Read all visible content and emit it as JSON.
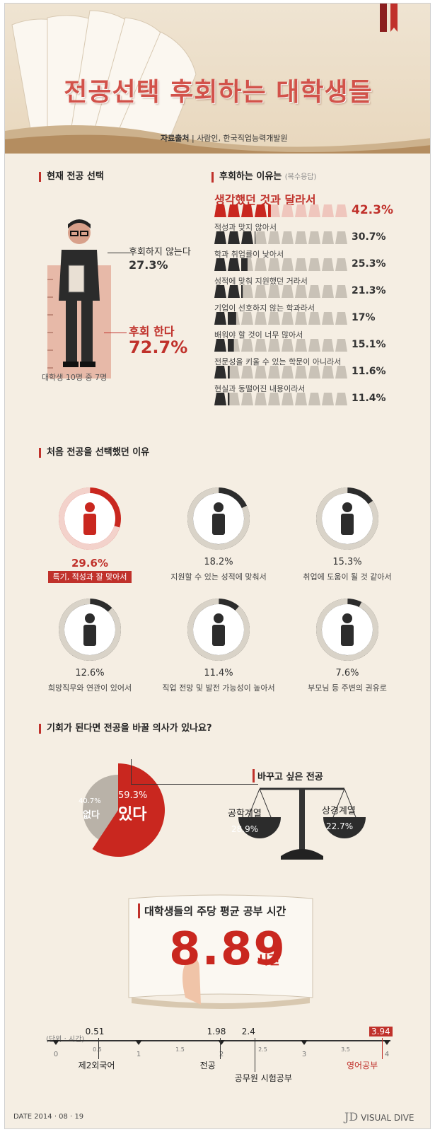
{
  "header": {
    "title": "전공선택 후회하는 대학생들",
    "source_label": "자료출처",
    "source_text": "사람인, 한국직업능력개발원"
  },
  "current": {
    "heading": "현재 전공 선택",
    "no_regret_label": "후회하지 않는다",
    "no_regret_value": "27.3%",
    "regret_label": "후회 한다",
    "regret_value": "72.7%",
    "caption": "대학생 10명 중 7명"
  },
  "regret_reasons": {
    "heading": "후회하는 이유는",
    "note": "(복수응답)",
    "items": [
      {
        "label": "생각했던 것과 달라서",
        "value": "42.3%",
        "pct": 42.3
      },
      {
        "label": "적성과 맞지 않아서",
        "value": "30.7%",
        "pct": 30.7
      },
      {
        "label": "학과 취업률이 낮아서",
        "value": "25.3%",
        "pct": 25.3
      },
      {
        "label": "성적에 맞춰 지원했던 거라서",
        "value": "21.3%",
        "pct": 21.3
      },
      {
        "label": "기업이 선호하지 않는 학과라서",
        "value": "17%",
        "pct": 17
      },
      {
        "label": "배워야 할 것이 너무 많아서",
        "value": "15.1%",
        "pct": 15.1
      },
      {
        "label": "전문성을 키울 수 있는 학문이 아니라서",
        "value": "11.6%",
        "pct": 11.6
      },
      {
        "label": "현실과 동떨어진 내용이라서",
        "value": "11.4%",
        "pct": 11.4
      }
    ]
  },
  "first_choice": {
    "heading": "처음 전공을 선택했던 이유",
    "items": [
      {
        "value": "29.6%",
        "pct": 29.6,
        "label": "특기, 적성과 잘 맞아서",
        "icon": "person-light-icon"
      },
      {
        "value": "18.2%",
        "pct": 18.2,
        "label": "지원할 수 있는 성적에 맞춰서",
        "icon": "diploma-icon"
      },
      {
        "value": "15.3%",
        "pct": 15.3,
        "label": "취업에 도움이 될 것 같아서",
        "icon": "businessman-icon"
      },
      {
        "value": "12.6%",
        "pct": 12.6,
        "label": "희망직무와 연관이 있어서",
        "icon": "desk-worker-icon"
      },
      {
        "value": "11.4%",
        "pct": 11.4,
        "label": "직업 전망 및 발전 가능성이 높아서",
        "icon": "stairs-climber-icon"
      },
      {
        "value": "7.6%",
        "pct": 7.6,
        "label": "부모님 등 주변의 권유로",
        "icon": "advice-icon"
      }
    ]
  },
  "change": {
    "heading": "기회가 된다면 전공을 바꿀 의사가 있나요?",
    "no_pct": "40.7%",
    "no_label": "없다",
    "yes_pct": "59.3%",
    "yes_label": "있다",
    "yes_value": 59.3,
    "scale_title": "바꾸고 싶은 전공",
    "left_label": "공학계열",
    "left_value": "28.9%",
    "right_label": "상경계열",
    "right_value": "22.7%"
  },
  "study": {
    "heading": "대학생들의 주당 평균 공부 시간",
    "hours": "8.89",
    "unit": "시간"
  },
  "timeline": {
    "unit_label": "(단위 : 시간)",
    "axis_min": 0,
    "axis_max": 4,
    "ticks": [
      "0",
      "0.5",
      "1",
      "1.5",
      "2",
      "2.5",
      "3",
      "3.5",
      "4"
    ],
    "points": [
      {
        "value": 0.51,
        "label": "0.51",
        "item": "제2외국어"
      },
      {
        "value": 1.98,
        "label": "1.98",
        "item": "전공"
      },
      {
        "value": 2.4,
        "label": "2.4",
        "item": "공무원 시험공부"
      },
      {
        "value": 3.94,
        "label": "3.94",
        "item": "영어공부"
      }
    ]
  },
  "footer": {
    "date": "DATE  2014 · 08 · 19",
    "brand": "VISUAL DIVE"
  },
  "chart_data": [
    {
      "type": "bar",
      "title": "후회하는 이유는",
      "categories": [
        "생각했던 것과 달라서",
        "적성과 맞지 않아서",
        "학과 취업률이 낮아서",
        "성적에 맞춰 지원했던 거라서",
        "기업이 선호하지 않는 학과라서",
        "배워야 할 것이 너무 많아서",
        "전문성을 키울 수 있는 학문이 아니라서",
        "현실과 동떨어진 내용이라서"
      ],
      "values": [
        42.3,
        30.7,
        25.3,
        21.3,
        17,
        15.1,
        11.6,
        11.4
      ]
    },
    {
      "type": "pie",
      "title": "현재 전공 선택",
      "categories": [
        "후회하지 않는다",
        "후회 한다"
      ],
      "values": [
        27.3,
        72.7
      ]
    },
    {
      "type": "bar",
      "title": "처음 전공을 선택했던 이유",
      "categories": [
        "특기, 적성과 잘 맞아서",
        "지원할 수 있는 성적에 맞춰서",
        "취업에 도움이 될 것 같아서",
        "희망직무와 연관이 있어서",
        "직업 전망 및 발전 가능성이 높아서",
        "부모님 등 주변의 권유로"
      ],
      "values": [
        29.6,
        18.2,
        15.3,
        12.6,
        11.4,
        7.6
      ]
    },
    {
      "type": "pie",
      "title": "기회가 된다면 전공을 바꿀 의사가 있나요?",
      "categories": [
        "없다",
        "있다"
      ],
      "values": [
        40.7,
        59.3
      ]
    },
    {
      "type": "bar",
      "title": "바꾸고 싶은 전공",
      "categories": [
        "공학계열",
        "상경계열"
      ],
      "values": [
        28.9,
        22.7
      ]
    },
    {
      "type": "scatter",
      "title": "",
      "x": [
        0.51,
        1.98,
        2.4,
        3.94
      ],
      "categories": [
        "제2외국어",
        "전공",
        "공무원 시험공부",
        "영어공부"
      ],
      "xlim": [
        0,
        4
      ]
    }
  ]
}
